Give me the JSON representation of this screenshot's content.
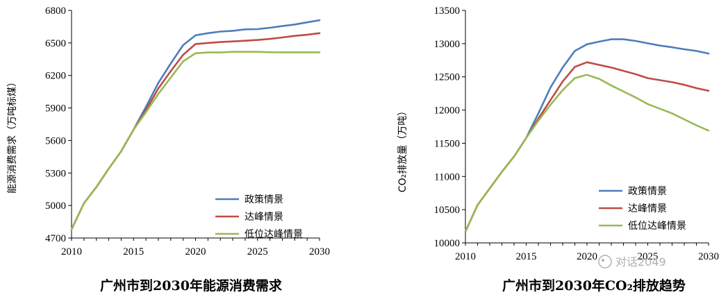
{
  "watermark": "对话2049",
  "chart_data": [
    {
      "type": "line",
      "title": "广州市到2030年能源消费需求",
      "xlabel": "",
      "ylabel": "能源消费需求（万吨标煤）",
      "xlim": [
        2010,
        2030
      ],
      "ylim": [
        4700,
        6800
      ],
      "xticks": [
        "2010",
        "2015",
        "2020",
        "2025",
        "2030"
      ],
      "yticks": [
        "4700",
        "5000",
        "5300",
        "5600",
        "5900",
        "6200",
        "6500",
        "6800"
      ],
      "grid": false,
      "legend": "bottom-right",
      "x": [
        2010,
        2011,
        2012,
        2013,
        2014,
        2015,
        2016,
        2017,
        2018,
        2019,
        2020,
        2021,
        2022,
        2023,
        2024,
        2025,
        2026,
        2027,
        2028,
        2029,
        2030
      ],
      "series": [
        {
          "name": "政策情景",
          "color": "#4a7ebb",
          "values": [
            4780,
            5020,
            5170,
            5340,
            5500,
            5700,
            5910,
            6130,
            6310,
            6480,
            6570,
            6590,
            6605,
            6612,
            6625,
            6627,
            6640,
            6655,
            6670,
            6690,
            6710
          ]
        },
        {
          "name": "达峰情景",
          "color": "#be4b48",
          "values": [
            4780,
            5020,
            5170,
            5340,
            5500,
            5700,
            5880,
            6080,
            6240,
            6390,
            6490,
            6500,
            6508,
            6514,
            6520,
            6527,
            6537,
            6550,
            6565,
            6575,
            6590
          ]
        },
        {
          "name": "低位达峰情景",
          "color": "#98b954",
          "values": [
            4780,
            5020,
            5170,
            5340,
            5500,
            5700,
            5860,
            6030,
            6180,
            6330,
            6405,
            6412,
            6412,
            6418,
            6418,
            6418,
            6414,
            6413,
            6413,
            6413,
            6413
          ]
        }
      ]
    },
    {
      "type": "line",
      "title": "广州市到2030年CO₂排放趋势",
      "xlabel": "",
      "ylabel": "CO₂排放量（万吨）",
      "xlim": [
        2010,
        2030
      ],
      "ylim": [
        10000,
        13500
      ],
      "xticks": [
        "2010",
        "2015",
        "2020",
        "2025",
        "2030"
      ],
      "yticks": [
        "10000",
        "10500",
        "11000",
        "11500",
        "12000",
        "12500",
        "13000",
        "13500"
      ],
      "grid": false,
      "legend": "bottom-center",
      "x": [
        2010,
        2011,
        2012,
        2013,
        2014,
        2015,
        2016,
        2017,
        2018,
        2019,
        2020,
        2021,
        2022,
        2023,
        2024,
        2025,
        2026,
        2027,
        2028,
        2029,
        2030
      ],
      "series": [
        {
          "name": "政策情景",
          "color": "#4a7ebb",
          "values": [
            10170,
            10570,
            10820,
            11070,
            11300,
            11580,
            11950,
            12340,
            12640,
            12890,
            12990,
            13030,
            13065,
            13065,
            13040,
            13005,
            12970,
            12945,
            12915,
            12890,
            12850
          ]
        },
        {
          "name": "达峰情景",
          "color": "#be4b48",
          "values": [
            10170,
            10570,
            10820,
            11070,
            11300,
            11580,
            11870,
            12150,
            12430,
            12650,
            12720,
            12680,
            12640,
            12590,
            12540,
            12480,
            12450,
            12420,
            12380,
            12330,
            12290
          ]
        },
        {
          "name": "低位达峰情景",
          "color": "#98b954",
          "values": [
            10170,
            10570,
            10820,
            11070,
            11300,
            11580,
            11840,
            12080,
            12300,
            12480,
            12530,
            12470,
            12370,
            12280,
            12190,
            12090,
            12020,
            11950,
            11860,
            11770,
            11690
          ]
        }
      ]
    }
  ]
}
